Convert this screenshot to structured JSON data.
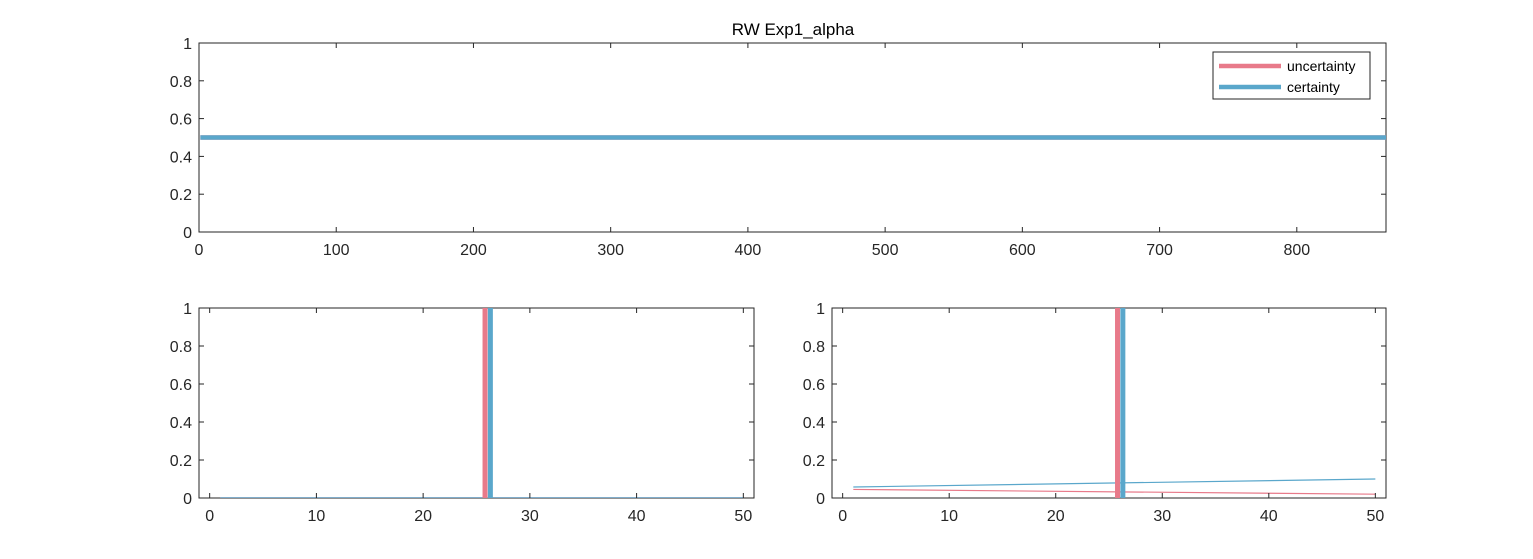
{
  "figure": {
    "title": "RW  Exp1_alpha"
  },
  "chart_data": [
    {
      "type": "line",
      "title": "RW  Exp1_alpha",
      "xlim": [
        0,
        865
      ],
      "ylim": [
        0,
        1
      ],
      "xticks": [
        0,
        100,
        200,
        300,
        400,
        500,
        600,
        700,
        800
      ],
      "yticks": [
        0,
        0.2,
        0.4,
        0.6,
        0.8,
        1
      ],
      "legend": {
        "placement": "top-right",
        "entries": [
          "uncertainty",
          "certainty"
        ]
      },
      "series": [
        {
          "name": "uncertainty",
          "color": "#e87a8a",
          "linewidth": "thick",
          "x": [
            1,
            865
          ],
          "y": [
            0.5,
            0.5
          ]
        },
        {
          "name": "certainty",
          "color": "#5aa7cb",
          "linewidth": "thick",
          "x": [
            1,
            865
          ],
          "y": [
            0.5,
            0.5
          ]
        }
      ]
    },
    {
      "type": "line",
      "xlim": [
        -1,
        51
      ],
      "ylim": [
        0,
        1
      ],
      "xticks": [
        0,
        10,
        20,
        30,
        40,
        50
      ],
      "yticks": [
        0,
        0.2,
        0.4,
        0.6,
        0.8,
        1
      ],
      "vlines": [
        {
          "series": "uncertainty",
          "x": 25.8,
          "color": "#e87a8a"
        },
        {
          "series": "certainty",
          "x": 26.3,
          "color": "#5aa7cb"
        }
      ],
      "series": [
        {
          "name": "uncertainty",
          "color": "#e87a8a",
          "x": [
            1,
            50
          ],
          "y": [
            0.001,
            0.001
          ]
        },
        {
          "name": "certainty",
          "color": "#5aa7cb",
          "x": [
            1,
            50
          ],
          "y": [
            0.001,
            0.001
          ]
        }
      ]
    },
    {
      "type": "line",
      "xlim": [
        -1,
        51
      ],
      "ylim": [
        0,
        1
      ],
      "xticks": [
        0,
        10,
        20,
        30,
        40,
        50
      ],
      "yticks": [
        0,
        0.2,
        0.4,
        0.6,
        0.8,
        1
      ],
      "vlines": [
        {
          "series": "uncertainty",
          "x": 25.8,
          "color": "#e87a8a"
        },
        {
          "series": "certainty",
          "x": 26.3,
          "color": "#5aa7cb"
        }
      ],
      "series": [
        {
          "name": "uncertainty",
          "color": "#e87a8a",
          "x": [
            1,
            50
          ],
          "y": [
            0.045,
            0.02
          ]
        },
        {
          "name": "certainty",
          "color": "#5aa7cb",
          "x": [
            1,
            50
          ],
          "y": [
            0.058,
            0.1
          ]
        }
      ]
    }
  ]
}
